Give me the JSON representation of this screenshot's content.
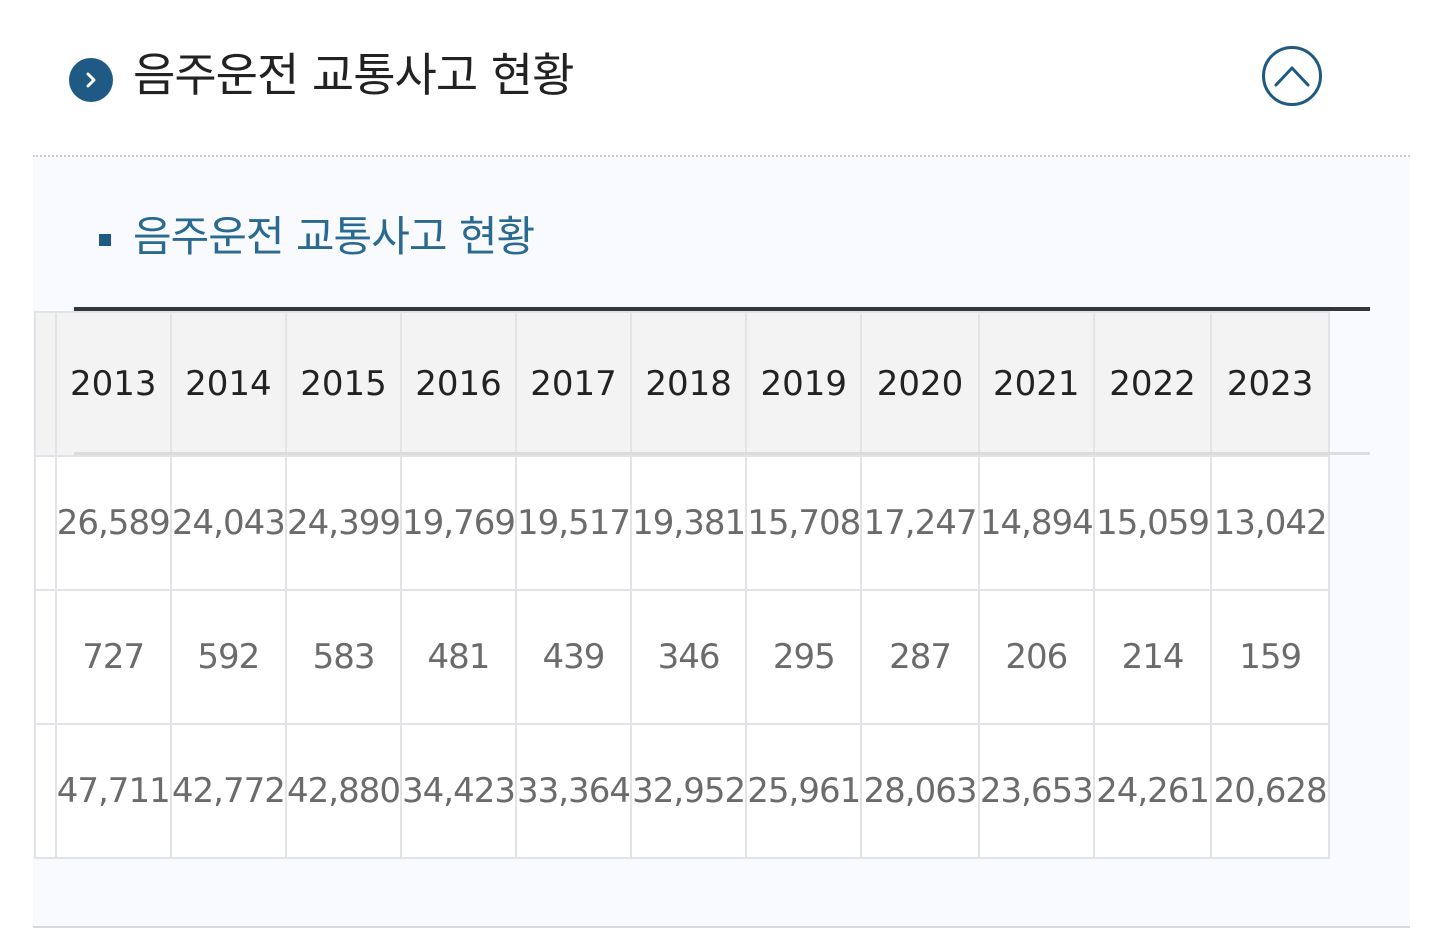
{
  "section": {
    "title": "음주운전 교통사고 현황",
    "toggle_icon": "chevron-up-icon",
    "bullet_icon": "chevron-right-icon"
  },
  "panel": {
    "subtitle": "음주운전 교통사고 현황"
  },
  "table": {
    "columns": [
      "2013",
      "2014",
      "2015",
      "2016",
      "2017",
      "2018",
      "2019",
      "2020",
      "2021",
      "2022",
      "2023"
    ],
    "rows": [
      {
        "label": "",
        "values": [
          "26,589",
          "24,043",
          "24,399",
          "19,769",
          "19,517",
          "19,381",
          "15,708",
          "17,247",
          "14,894",
          "15,059",
          "13,042"
        ]
      },
      {
        "label": "",
        "values": [
          "727",
          "592",
          "583",
          "481",
          "439",
          "346",
          "295",
          "287",
          "206",
          "214",
          "159"
        ]
      },
      {
        "label": "",
        "values": [
          "47,711",
          "42,772",
          "42,880",
          "34,423",
          "33,364",
          "32,952",
          "25,961",
          "28,063",
          "23,653",
          "24,261",
          "20,628"
        ]
      }
    ]
  },
  "colors": {
    "accent": "#1e5a84",
    "subtitle": "#2a6a90",
    "table_top_border": "#33363d",
    "header_bg": "#f3f3f3",
    "panel_bg": "#f8fafd"
  }
}
